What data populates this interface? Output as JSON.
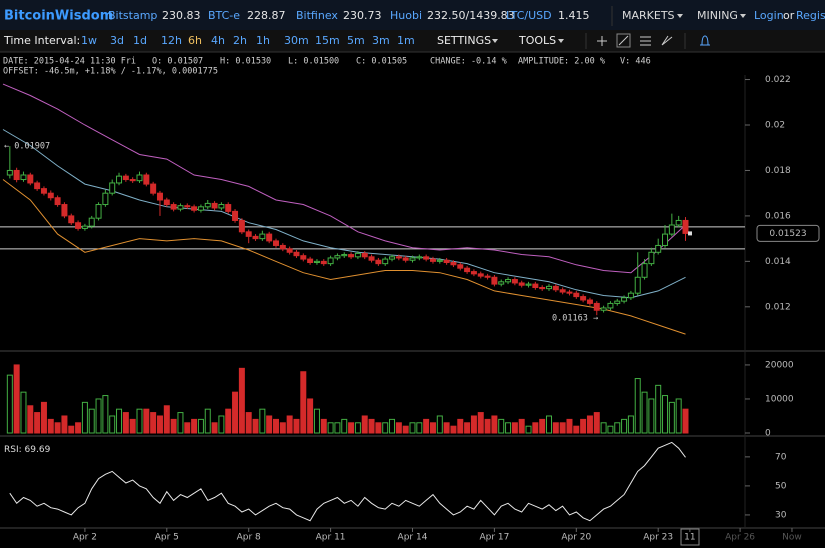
{
  "header": {
    "logo": "BitcoinWisdom",
    "markets": [
      {
        "name": "Bitstamp",
        "price": "230.83"
      },
      {
        "name": "BTC-e",
        "price": "228.87"
      },
      {
        "name": "Bitfinex",
        "price": "230.73"
      },
      {
        "name": "Huobi",
        "price": "232.50/1439.83"
      },
      {
        "name": "LTC/USD",
        "price": "1.415"
      }
    ],
    "menus": [
      "MARKETS",
      "MINING"
    ],
    "login": "Login",
    "or": "or",
    "register": "Regist"
  },
  "toolbar": {
    "label": "Time Interval:",
    "intervals": [
      "1w",
      "3d",
      "1d",
      "12h",
      "6h",
      "4h",
      "2h",
      "1h",
      "30m",
      "15m",
      "5m",
      "3m",
      "1m"
    ],
    "settings": "SETTINGS",
    "tools": "TOOLS"
  },
  "info": {
    "line1": [
      "DATE: 2015-04-24 11:30 Fri",
      "O: 0.01507",
      "H: 0.01530",
      "L: 0.01500",
      "C: 0.01505",
      "CHANGE: -0.14 %",
      "AMPLITUDE: 2.00 %",
      "V: 446"
    ],
    "line2": "OFFSET: -46.5m, +1.18% / -1.17%, 0.0001775"
  },
  "chart_data": [
    {
      "type": "candlestick",
      "up_color": "#44b044",
      "down_color": "#d42a2a",
      "xlim": [
        -1.11,
        29.11
      ],
      "ylim": [
        0.0101,
        0.0222
      ],
      "yticks": [
        0.012,
        0.014,
        0.016,
        0.018,
        0.02,
        0.022
      ],
      "xticks": [
        {
          "value": 2,
          "label": "Apr 2"
        },
        {
          "value": 5,
          "label": "Apr 5"
        },
        {
          "value": 8,
          "label": "Apr 8"
        },
        {
          "value": 11,
          "label": "Apr 11"
        },
        {
          "value": 14,
          "label": "Apr 14"
        },
        {
          "value": 17,
          "label": "Apr 17"
        },
        {
          "value": 20,
          "label": "Apr 20"
        },
        {
          "value": 23,
          "label": "Apr 23"
        },
        {
          "value": 24.16,
          "label": "11"
        },
        {
          "value": 26,
          "label": "Apr 26"
        },
        {
          "value": 27.9,
          "label": "Now"
        }
      ],
      "x": [
        -0.75,
        -0.5,
        -0.25,
        0,
        0.25,
        0.5,
        0.75,
        1,
        1.25,
        1.5,
        1.75,
        2,
        2.25,
        2.5,
        2.75,
        3,
        3.25,
        3.5,
        3.75,
        4,
        4.25,
        4.5,
        4.75,
        5,
        5.25,
        5.5,
        5.75,
        6,
        6.25,
        6.5,
        6.75,
        7,
        7.25,
        7.5,
        7.75,
        8,
        8.25,
        8.5,
        8.75,
        9,
        9.25,
        9.5,
        9.75,
        10,
        10.25,
        10.5,
        10.75,
        11,
        11.25,
        11.5,
        11.75,
        12,
        12.25,
        12.5,
        12.75,
        13,
        13.25,
        13.5,
        13.75,
        14,
        14.25,
        14.5,
        14.75,
        15,
        15.25,
        15.5,
        15.75,
        16,
        16.25,
        16.5,
        16.75,
        17,
        17.25,
        17.5,
        17.75,
        18,
        18.25,
        18.5,
        18.75,
        19,
        19.25,
        19.5,
        19.75,
        20,
        20.25,
        20.5,
        20.75,
        21,
        21.25,
        21.5,
        21.75,
        22,
        22.25,
        22.5,
        22.75,
        23,
        23.25,
        23.5,
        23.75,
        24
      ],
      "open": [
        0.0178,
        0.018,
        0.0176,
        0.0178,
        0.01745,
        0.0172,
        0.017,
        0.0168,
        0.0165,
        0.016,
        0.0157,
        0.01545,
        0.01555,
        0.0159,
        0.0165,
        0.017,
        0.01745,
        0.01775,
        0.0176,
        0.01755,
        0.0178,
        0.0174,
        0.017,
        0.0167,
        0.0165,
        0.0163,
        0.01645,
        0.0164,
        0.01625,
        0.0164,
        0.01655,
        0.01635,
        0.0165,
        0.0162,
        0.0158,
        0.0153,
        0.0151,
        0.015,
        0.0152,
        0.0149,
        0.0147,
        0.01455,
        0.0144,
        0.01425,
        0.0141,
        0.01395,
        0.014,
        0.0139,
        0.01415,
        0.01425,
        0.0143,
        0.0142,
        0.01435,
        0.0142,
        0.01405,
        0.0139,
        0.0141,
        0.0142,
        0.01415,
        0.01405,
        0.01415,
        0.0142,
        0.0141,
        0.014,
        0.01405,
        0.01395,
        0.01385,
        0.0137,
        0.01355,
        0.01345,
        0.01335,
        0.0133,
        0.013,
        0.0131,
        0.0132,
        0.01305,
        0.01295,
        0.013,
        0.01285,
        0.0128,
        0.0129,
        0.01275,
        0.01265,
        0.0126,
        0.01245,
        0.0123,
        0.01215,
        0.01185,
        0.01195,
        0.01215,
        0.01225,
        0.0124,
        0.0126,
        0.0133,
        0.0139,
        0.0144,
        0.0147,
        0.0152,
        0.0156,
        0.0158
      ],
      "high": [
        0.01907,
        0.01812,
        0.01795,
        0.0179,
        0.01755,
        0.0173,
        0.01712,
        0.0169,
        0.0166,
        0.0161,
        0.0158,
        0.01565,
        0.016,
        0.0166,
        0.01715,
        0.0176,
        0.0179,
        0.01785,
        0.0177,
        0.01795,
        0.0179,
        0.0175,
        0.0171,
        0.0168,
        0.0166,
        0.01655,
        0.01655,
        0.0165,
        0.0165,
        0.0167,
        0.01665,
        0.0166,
        0.0166,
        0.0163,
        0.0159,
        0.0154,
        0.0152,
        0.01535,
        0.0153,
        0.015,
        0.0148,
        0.01465,
        0.0145,
        0.01435,
        0.0142,
        0.0141,
        0.0141,
        0.01425,
        0.01435,
        0.0144,
        0.0144,
        0.01445,
        0.01445,
        0.0143,
        0.01415,
        0.0142,
        0.0143,
        0.0143,
        0.01425,
        0.01425,
        0.0143,
        0.0143,
        0.0142,
        0.01415,
        0.01415,
        0.01405,
        0.01395,
        0.0138,
        0.01365,
        0.01355,
        0.01345,
        0.0134,
        0.0132,
        0.0133,
        0.0133,
        0.01315,
        0.0131,
        0.0131,
        0.01295,
        0.013,
        0.013,
        0.01285,
        0.01275,
        0.0127,
        0.01255,
        0.0124,
        0.01225,
        0.01205,
        0.01225,
        0.01235,
        0.0125,
        0.0127,
        0.0144,
        0.0141,
        0.0146,
        0.015,
        0.0156,
        0.0161,
        0.016,
        0.01595
      ],
      "low": [
        0.01765,
        0.01748,
        0.0175,
        0.01735,
        0.0171,
        0.0169,
        0.01668,
        0.0164,
        0.0159,
        0.0156,
        0.01535,
        0.01535,
        0.01545,
        0.0158,
        0.0164,
        0.0169,
        0.01735,
        0.0175,
        0.01745,
        0.01745,
        0.0173,
        0.0169,
        0.016,
        0.0164,
        0.0162,
        0.0162,
        0.0163,
        0.01615,
        0.01615,
        0.0163,
        0.01625,
        0.01625,
        0.0161,
        0.0157,
        0.0152,
        0.0148,
        0.0149,
        0.0149,
        0.0148,
        0.0146,
        0.01445,
        0.0143,
        0.01415,
        0.014,
        0.01385,
        0.01385,
        0.0138,
        0.0138,
        0.01405,
        0.01415,
        0.0141,
        0.0141,
        0.0141,
        0.01395,
        0.0138,
        0.0138,
        0.014,
        0.01405,
        0.01395,
        0.01395,
        0.01405,
        0.014,
        0.0139,
        0.0139,
        0.01385,
        0.01375,
        0.0136,
        0.01345,
        0.01335,
        0.01325,
        0.0132,
        0.0129,
        0.0129,
        0.013,
        0.01295,
        0.01285,
        0.01285,
        0.01275,
        0.0127,
        0.0127,
        0.01265,
        0.01255,
        0.0125,
        0.01235,
        0.0122,
        0.01205,
        0.01163,
        0.01175,
        0.01185,
        0.01205,
        0.01215,
        0.0123,
        0.0125,
        0.0132,
        0.0138,
        0.0143,
        0.0146,
        0.0151,
        0.0155,
        0.0149
      ],
      "close": [
        0.018,
        0.0176,
        0.0178,
        0.01745,
        0.0172,
        0.017,
        0.0168,
        0.0165,
        0.016,
        0.0157,
        0.01545,
        0.01555,
        0.0159,
        0.0165,
        0.017,
        0.01745,
        0.01775,
        0.0176,
        0.01755,
        0.0178,
        0.0174,
        0.017,
        0.0167,
        0.0165,
        0.0163,
        0.01645,
        0.0164,
        0.01625,
        0.0164,
        0.01655,
        0.01635,
        0.0165,
        0.0162,
        0.0158,
        0.0153,
        0.0151,
        0.015,
        0.0152,
        0.0149,
        0.0147,
        0.01455,
        0.0144,
        0.01425,
        0.0141,
        0.01395,
        0.014,
        0.0139,
        0.01415,
        0.01425,
        0.0143,
        0.0142,
        0.01435,
        0.0142,
        0.01405,
        0.0139,
        0.0141,
        0.0142,
        0.01415,
        0.01405,
        0.01415,
        0.0142,
        0.0141,
        0.014,
        0.01405,
        0.01395,
        0.01385,
        0.0137,
        0.01355,
        0.01345,
        0.01335,
        0.0133,
        0.013,
        0.0131,
        0.0132,
        0.01305,
        0.01295,
        0.013,
        0.01285,
        0.0128,
        0.0129,
        0.01275,
        0.01265,
        0.0126,
        0.01245,
        0.0123,
        0.01215,
        0.01185,
        0.01195,
        0.01215,
        0.01225,
        0.0124,
        0.0126,
        0.0133,
        0.0139,
        0.0144,
        0.0147,
        0.0152,
        0.0156,
        0.0158,
        0.01523
      ],
      "series": [
        {
          "color": "#c060c0",
          "x": [
            -1,
            0,
            1,
            2,
            3,
            4,
            5,
            6,
            7,
            8,
            9,
            10,
            11,
            12,
            13,
            14,
            15,
            16,
            17,
            18,
            19,
            20,
            21,
            22,
            23,
            24
          ],
          "values": [
            0.0218,
            0.0213,
            0.0207,
            0.02,
            0.01935,
            0.0187,
            0.0185,
            0.0178,
            0.0176,
            0.0173,
            0.0167,
            0.0165,
            0.016,
            0.0153,
            0.0149,
            0.0146,
            0.0145,
            0.0146,
            0.0145,
            0.0143,
            0.0142,
            0.01385,
            0.0136,
            0.0135,
            0.0145,
            0.0156
          ]
        },
        {
          "color": "#7fb0c8",
          "x": [
            -1,
            0,
            1,
            2,
            3,
            4,
            5,
            6,
            7,
            8,
            9,
            10,
            11,
            12,
            13,
            14,
            15,
            16,
            17,
            18,
            19,
            20,
            21,
            22,
            23,
            24
          ],
          "values": [
            0.0198,
            0.0191,
            0.0182,
            0.0174,
            0.0171,
            0.0167,
            0.0164,
            0.0163,
            0.0162,
            0.0157,
            0.0154,
            0.0149,
            0.0146,
            0.0144,
            0.0143,
            0.0142,
            0.0141,
            0.0139,
            0.0135,
            0.0133,
            0.0131,
            0.01275,
            0.0125,
            0.0124,
            0.0127,
            0.0133
          ]
        },
        {
          "color": "#e09030",
          "x": [
            -1,
            0,
            1,
            2,
            3,
            4,
            5,
            6,
            7,
            8,
            9,
            10,
            11,
            12,
            13,
            14,
            15,
            16,
            17,
            18,
            19,
            20,
            21,
            22,
            23,
            24
          ],
          "values": [
            0.0176,
            0.0167,
            0.0152,
            0.0144,
            0.0147,
            0.015,
            0.0149,
            0.015,
            0.0149,
            0.0145,
            0.014,
            0.0135,
            0.0132,
            0.0134,
            0.0136,
            0.0136,
            0.0135,
            0.0132,
            0.0127,
            0.0125,
            0.0123,
            0.0121,
            0.0119,
            0.0116,
            0.0112,
            0.0108
          ]
        }
      ],
      "levels": [
        0.01552,
        0.01455
      ],
      "annotations": [
        {
          "value": 0.01907,
          "label": "← 0.01907"
        },
        {
          "value": 0.01163,
          "label": "0.01163 →"
        }
      ],
      "last_price": 0.01523
    },
    {
      "type": "bar",
      "ylim": [
        0,
        23800
      ],
      "yticks": [
        0,
        10000,
        20000
      ],
      "values": [
        17000,
        20000,
        12000,
        8000,
        6000,
        9000,
        4000,
        3000,
        5000,
        2000,
        3000,
        9000,
        7000,
        10000,
        11000,
        5000,
        7000,
        6000,
        4000,
        7000,
        7000,
        6000,
        5000,
        8000,
        4000,
        6000,
        3000,
        4000,
        4000,
        7000,
        3000,
        5000,
        7000,
        12000,
        19000,
        6000,
        4000,
        7000,
        5000,
        4000,
        3000,
        5000,
        4000,
        18000,
        10000,
        7000,
        4000,
        3000,
        3000,
        4000,
        3000,
        3000,
        5000,
        4000,
        3000,
        3000,
        4000,
        3000,
        2000,
        3000,
        3000,
        4000,
        3000,
        5000,
        3000,
        2000,
        4000,
        3000,
        5000,
        6000,
        4000,
        5000,
        4000,
        3000,
        3000,
        4000,
        2000,
        3000,
        4000,
        5000,
        3000,
        3000,
        4000,
        2000,
        4000,
        5000,
        6000,
        3000,
        2000,
        3000,
        4000,
        5000,
        16000,
        12000,
        10000,
        14000,
        11000,
        9000,
        10000,
        7000
      ]
    },
    {
      "type": "line",
      "label": "RSI:",
      "color": "#e8e8e8",
      "ylim": [
        21,
        83
      ],
      "yticks": [
        30,
        50,
        70
      ],
      "values": [
        45,
        38,
        42,
        40,
        36,
        38,
        35,
        34,
        32,
        30,
        35,
        38,
        48,
        55,
        58,
        60,
        56,
        52,
        54,
        50,
        48,
        42,
        38,
        46,
        40,
        44,
        42,
        45,
        48,
        40,
        42,
        45,
        38,
        36,
        32,
        34,
        30,
        33,
        36,
        38,
        35,
        34,
        30,
        28,
        26,
        34,
        38,
        40,
        42,
        38,
        40,
        36,
        42,
        38,
        35,
        34,
        38,
        36,
        40,
        38,
        36,
        40,
        44,
        38,
        34,
        30,
        32,
        36,
        34,
        40,
        35,
        30,
        36,
        38,
        34,
        32,
        38,
        36,
        34,
        37,
        33,
        36,
        30,
        32,
        28,
        26,
        30,
        34,
        36,
        40,
        44,
        52,
        60,
        64,
        70,
        76,
        78,
        80,
        76,
        69.69
      ]
    }
  ]
}
